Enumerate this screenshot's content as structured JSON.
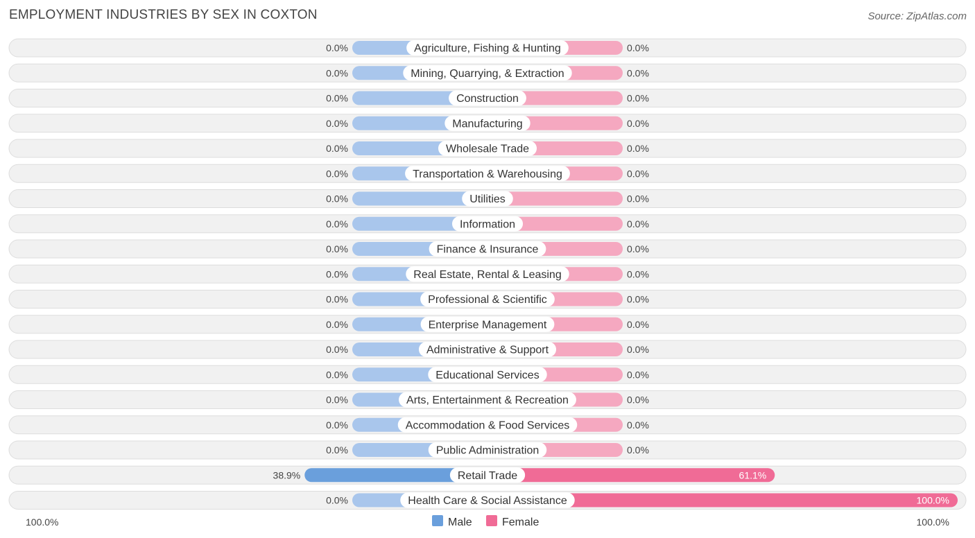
{
  "chart_data": {
    "type": "bar",
    "title": "EMPLOYMENT INDUSTRIES BY SEX IN COXTON",
    "source": "Source: ZipAtlas.com",
    "categories": [
      "Agriculture, Fishing & Hunting",
      "Mining, Quarrying, & Extraction",
      "Construction",
      "Manufacturing",
      "Wholesale Trade",
      "Transportation & Warehousing",
      "Utilities",
      "Information",
      "Finance & Insurance",
      "Real Estate, Rental & Leasing",
      "Professional & Scientific",
      "Enterprise Management",
      "Administrative & Support",
      "Educational Services",
      "Arts, Entertainment & Recreation",
      "Accommodation & Food Services",
      "Public Administration",
      "Retail Trade",
      "Health Care & Social Assistance"
    ],
    "series": [
      {
        "name": "Male",
        "color": "#6a9fdc",
        "light_color": "#a9c6ec",
        "values": [
          0,
          0,
          0,
          0,
          0,
          0,
          0,
          0,
          0,
          0,
          0,
          0,
          0,
          0,
          0,
          0,
          0,
          38.9,
          0
        ],
        "labels": [
          "0.0%",
          "0.0%",
          "0.0%",
          "0.0%",
          "0.0%",
          "0.0%",
          "0.0%",
          "0.0%",
          "0.0%",
          "0.0%",
          "0.0%",
          "0.0%",
          "0.0%",
          "0.0%",
          "0.0%",
          "0.0%",
          "0.0%",
          "38.9%",
          "0.0%"
        ]
      },
      {
        "name": "Female",
        "color": "#f06b96",
        "light_color": "#f5a8c0",
        "values": [
          0,
          0,
          0,
          0,
          0,
          0,
          0,
          0,
          0,
          0,
          0,
          0,
          0,
          0,
          0,
          0,
          0,
          61.1,
          100
        ],
        "labels": [
          "0.0%",
          "0.0%",
          "0.0%",
          "0.0%",
          "0.0%",
          "0.0%",
          "0.0%",
          "0.0%",
          "0.0%",
          "0.0%",
          "0.0%",
          "0.0%",
          "0.0%",
          "0.0%",
          "0.0%",
          "0.0%",
          "0.0%",
          "61.1%",
          "100.0%"
        ]
      }
    ],
    "axis": {
      "left_label": "100.0%",
      "right_label": "100.0%",
      "xlim": [
        -100,
        100
      ]
    },
    "legend": {
      "position": "bottom-center",
      "entries": [
        "Male",
        "Female"
      ]
    }
  }
}
